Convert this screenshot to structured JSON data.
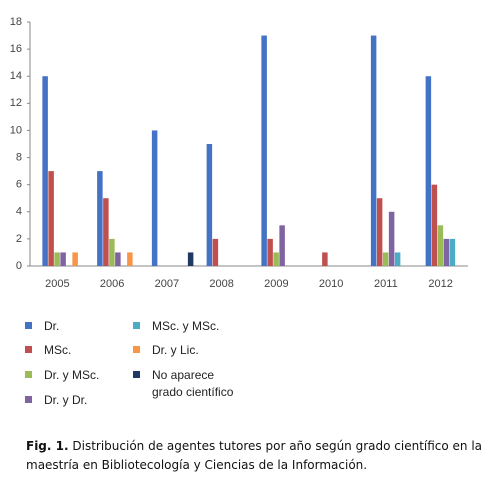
{
  "chart_data": {
    "type": "bar",
    "categories": [
      "2005",
      "2006",
      "2007",
      "2008",
      "2009",
      "2010",
      "2011",
      "2012"
    ],
    "series": [
      {
        "name": "Dr.",
        "color": "#4472c4",
        "values": [
          14,
          7,
          10,
          9,
          17,
          0,
          17,
          14
        ]
      },
      {
        "name": "MSc.",
        "color": "#c0504d",
        "values": [
          7,
          5,
          0,
          2,
          2,
          1,
          5,
          6
        ]
      },
      {
        "name": "Dr.  y MSc.",
        "color": "#9bbb59",
        "values": [
          1,
          2,
          0,
          0,
          1,
          0,
          1,
          3
        ]
      },
      {
        "name": "Dr. y Dr.",
        "color": "#8064a2",
        "values": [
          1,
          1,
          0,
          0,
          3,
          0,
          4,
          2
        ]
      },
      {
        "name": "MSc. y MSc.",
        "color": "#4bacc6",
        "values": [
          0,
          0,
          0,
          0,
          0,
          0,
          1,
          2
        ]
      },
      {
        "name": "Dr.  y Lic.",
        "color": "#f79646",
        "values": [
          1,
          1,
          0,
          0,
          0,
          0,
          0,
          0
        ]
      },
      {
        "name": "No aparece grado científico",
        "color": "#1f3864",
        "values": [
          0,
          0,
          1,
          0,
          0,
          0,
          0,
          0
        ]
      }
    ],
    "ylim": [
      0,
      18
    ],
    "yticks": [
      0,
      2,
      4,
      6,
      8,
      10,
      12,
      14,
      16,
      18
    ],
    "grid": false,
    "legend": "bottom"
  },
  "caption": {
    "label": "Fig. 1.",
    "text": "Distribución de agentes tutores por año según grado científico en la maestría en Bibliotecología y Ciencias  de la Información."
  }
}
